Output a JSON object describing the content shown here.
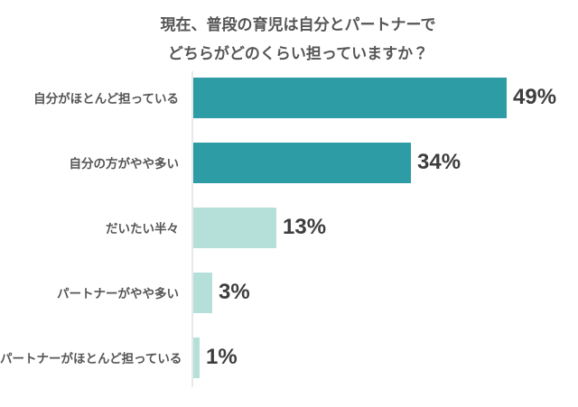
{
  "chart_data": {
    "type": "bar",
    "orientation": "horizontal",
    "title": "現在、普段の育児は自分とパートナーで どちらがどのくらい担っていますか？",
    "title_lines": [
      "現在、普段の育児は自分とパートナーで",
      "どちらがどのくらい担っていますか？"
    ],
    "categories": [
      "自分がほとんど担っている",
      "自分の方がやや多い",
      "だいたい半々",
      "パートナーがやや多い",
      "パートナーがほとんど担っている"
    ],
    "values": [
      49,
      34,
      13,
      3,
      1
    ],
    "value_labels": [
      "49%",
      "34%",
      "13%",
      "3%",
      "1%"
    ],
    "bar_colors": [
      "#2E9CA4",
      "#2E9CA4",
      "#B5E0DA",
      "#B5E0DA",
      "#B5E0DA"
    ],
    "xlim": [
      0,
      53
    ],
    "grid": false,
    "legend": "none",
    "colors": {
      "title_text": "#555555",
      "category_text": "#555555",
      "value_text": "#3D3D3D",
      "axis_line": "#E8E8E8",
      "background": "#FFFFFF"
    }
  }
}
